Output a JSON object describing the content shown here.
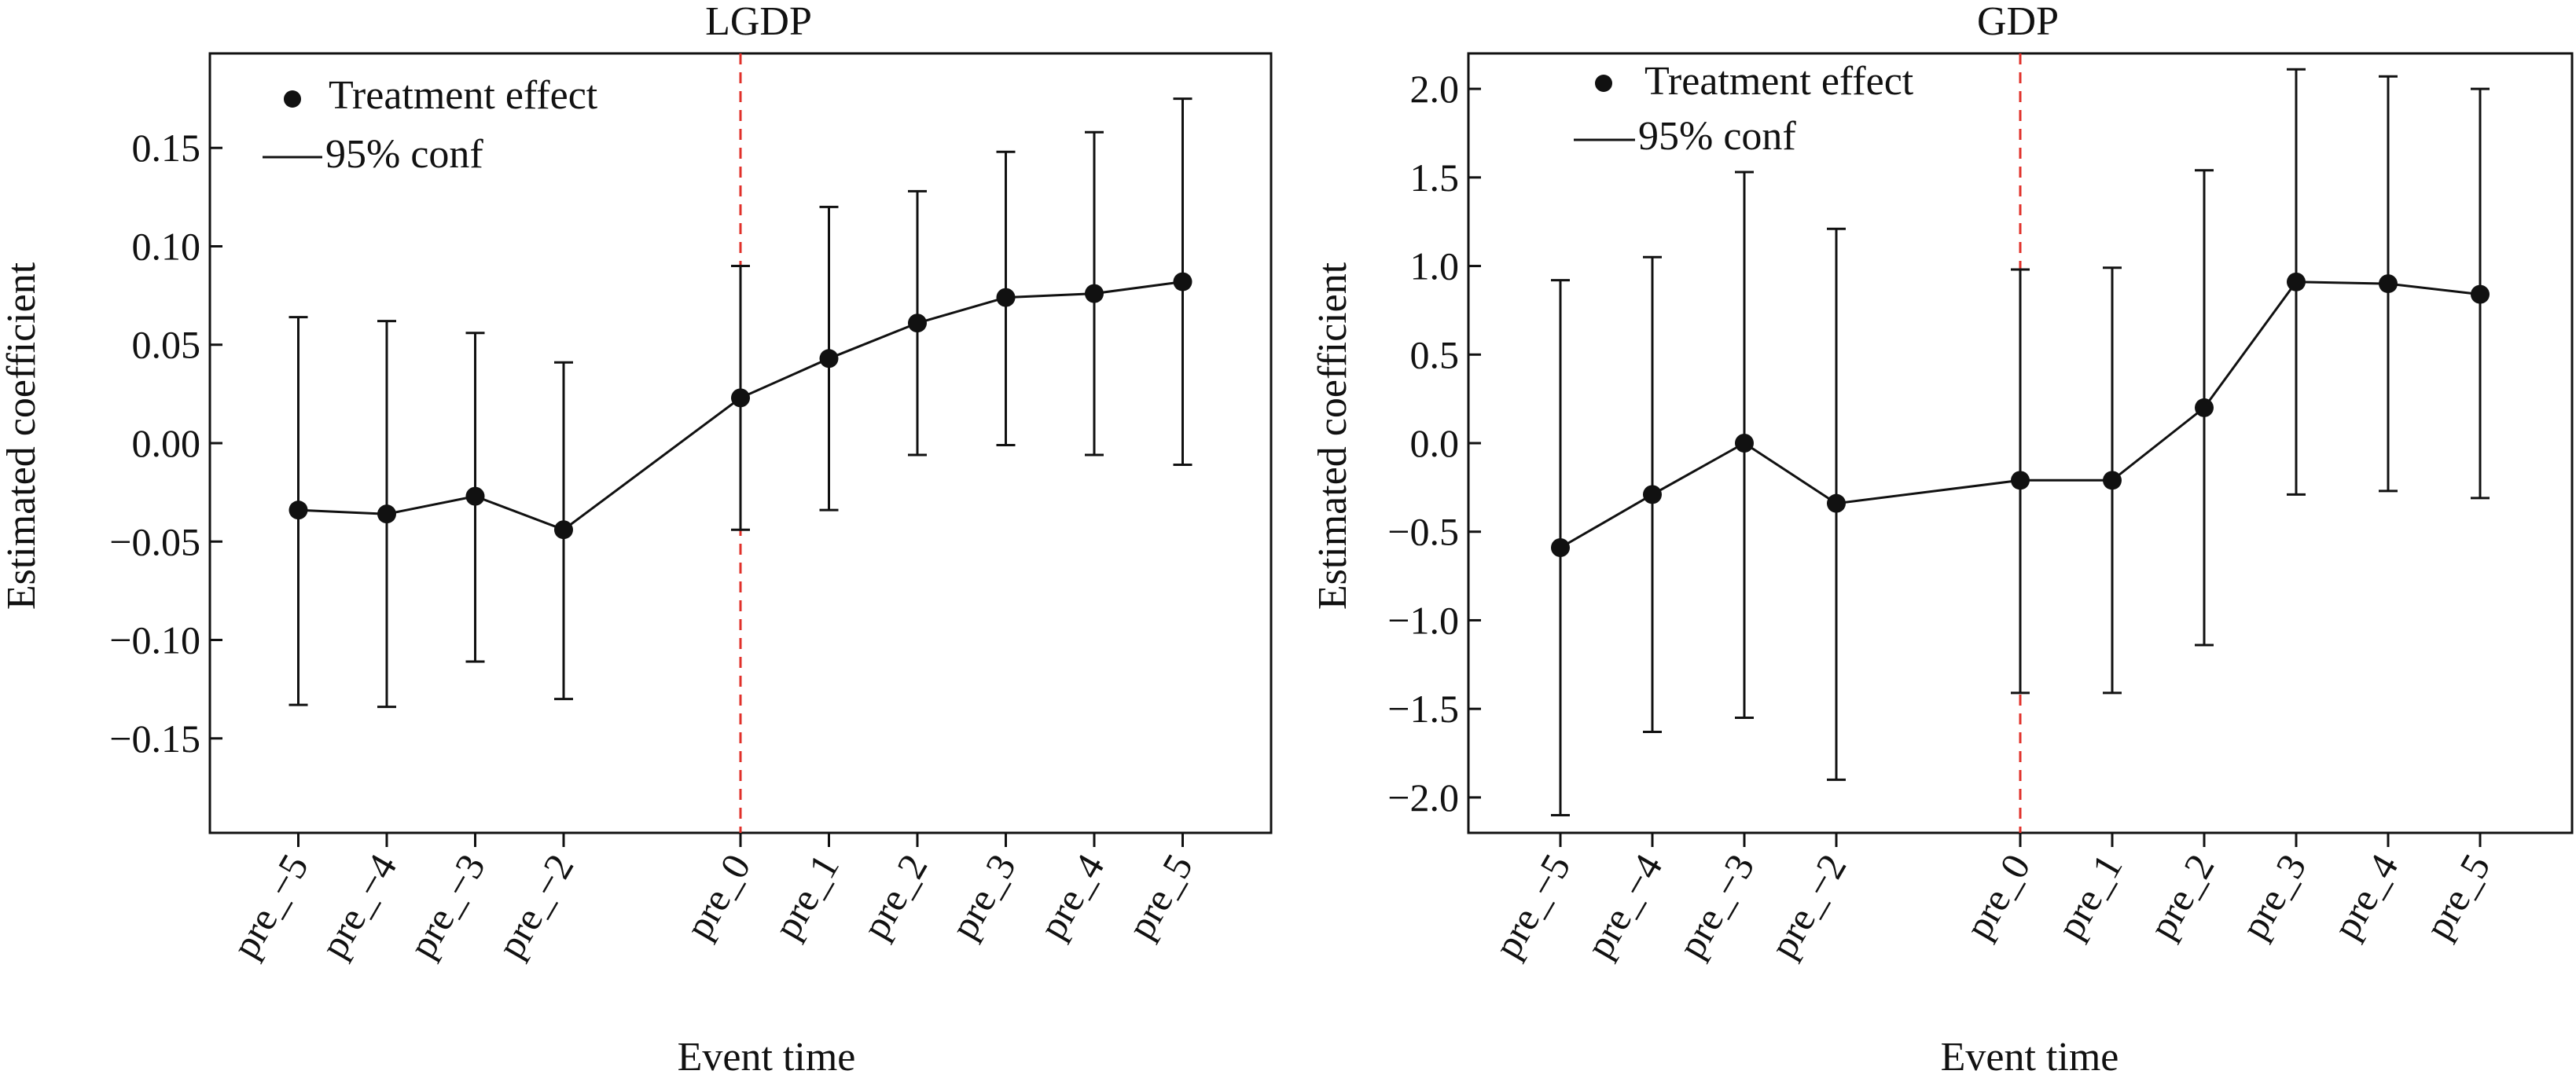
{
  "chart_data": [
    {
      "type": "scatter",
      "title": "LGDP",
      "xlabel": "Event time",
      "ylabel": "Estimated coefficient",
      "categories": [
        "pre_−5",
        "pre_−4",
        "pre_−3",
        "pre_−2",
        "pre_0",
        "pre_1",
        "pre_2",
        "pre_3",
        "pre_4",
        "pre_5"
      ],
      "x": [
        -5,
        -4,
        -3,
        -2,
        0,
        1,
        2,
        3,
        4,
        5
      ],
      "xlim": [
        -6,
        6
      ],
      "ylim": [
        -0.198,
        0.198
      ],
      "yticks": [
        -0.15,
        -0.1,
        -0.05,
        0.0,
        0.05,
        0.1,
        0.15
      ],
      "ytick_labels": [
        "−0.15",
        "−0.10",
        "−0.05",
        "0.00",
        "0.05",
        "0.10",
        "0.15"
      ],
      "series": [
        {
          "name": "Treatment effect",
          "values": [
            -0.034,
            -0.036,
            -0.027,
            -0.044,
            0.023,
            0.043,
            0.061,
            0.074,
            0.076,
            0.082
          ]
        },
        {
          "name": "95% conf",
          "lower": [
            -0.133,
            -0.134,
            -0.111,
            -0.13,
            -0.044,
            -0.034,
            -0.006,
            -0.001,
            -0.006,
            -0.011
          ],
          "upper": [
            0.064,
            0.062,
            0.056,
            0.041,
            0.09,
            0.12,
            0.128,
            0.148,
            0.158,
            0.175
          ]
        }
      ],
      "vline": {
        "x": 0,
        "color": "#e0302a",
        "style": "dashed"
      },
      "legend_position": "top-left",
      "grid": false
    },
    {
      "type": "scatter",
      "title": "GDP",
      "xlabel": "Event time",
      "ylabel": "Estimated coefficient",
      "categories": [
        "pre_−5",
        "pre_−4",
        "pre_−3",
        "pre_−2",
        "pre_0",
        "pre_1",
        "pre_2",
        "pre_3",
        "pre_4",
        "pre_5"
      ],
      "x": [
        -5,
        -4,
        -3,
        -2,
        0,
        1,
        2,
        3,
        4,
        5
      ],
      "xlim": [
        -6,
        6
      ],
      "ylim": [
        -2.2,
        2.2
      ],
      "yticks": [
        -2.0,
        -1.5,
        -1.0,
        -0.5,
        0.0,
        0.5,
        1.0,
        1.5,
        2.0
      ],
      "ytick_labels": [
        "−2.0",
        "−1.5",
        "−1.0",
        "−0.5",
        "0.0",
        "0.5",
        "1.0",
        "1.5",
        "2.0"
      ],
      "series": [
        {
          "name": "Treatment effect",
          "values": [
            -0.59,
            -0.29,
            0.0,
            -0.34,
            -0.21,
            -0.21,
            0.2,
            0.91,
            0.9,
            0.84
          ]
        },
        {
          "name": "95% conf",
          "lower": [
            -2.1,
            -1.63,
            -1.55,
            -1.9,
            -1.41,
            -1.41,
            -1.14,
            -0.29,
            -0.27,
            -0.31
          ],
          "upper": [
            0.92,
            1.05,
            1.53,
            1.21,
            0.98,
            0.99,
            1.54,
            2.11,
            2.07,
            2.0
          ]
        }
      ],
      "vline": {
        "x": 0,
        "color": "#e0302a",
        "style": "dashed"
      },
      "legend_position": "top-left",
      "grid": false
    }
  ]
}
